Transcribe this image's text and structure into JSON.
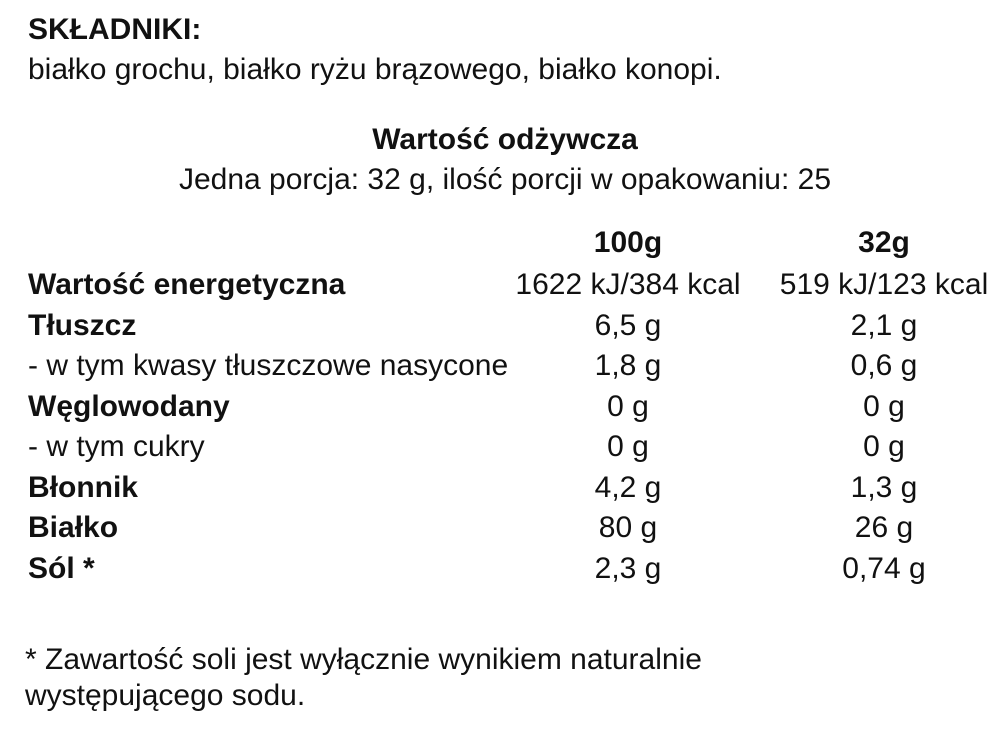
{
  "ingredients": {
    "title": "SKŁADNIKI:",
    "text": "białko grochu, białko ryżu brązowego, białko konopi."
  },
  "nutrition": {
    "title": "Wartość odżywcza",
    "serving": "Jedna porcja: 32 g, ilość porcji w opakowaniu: 25",
    "columns": [
      "100g",
      "32g"
    ],
    "rows": [
      [
        "Wartość energetyczna",
        "1622 kJ/384 kcal",
        "519 kJ/123 kcal"
      ],
      [
        "Tłuszcz",
        "6,5 g",
        "2,1 g"
      ],
      [
        "- w tym kwasy tłuszczowe nasycone",
        "1,8 g",
        "0,6 g"
      ],
      [
        "Węglowodany",
        "0 g",
        "0 g"
      ],
      [
        "- w tym cukry",
        "0 g",
        "0 g"
      ],
      [
        "Błonnik",
        "4,2 g",
        "1,3 g"
      ],
      [
        "Białko",
        "80 g",
        "26 g"
      ],
      [
        "Sól *",
        "2,3 g",
        "0,74 g"
      ]
    ]
  },
  "footnote": [
    "* Zawartość soli jest wyłącznie wynikiem naturalnie",
    "występującego sodu."
  ]
}
